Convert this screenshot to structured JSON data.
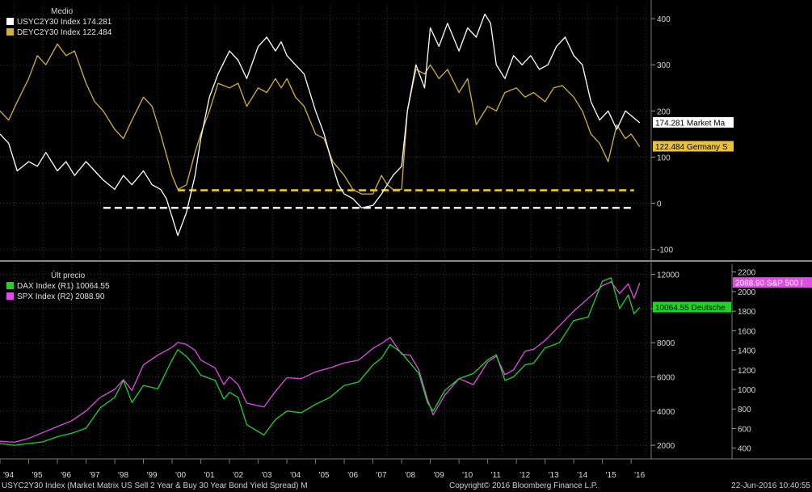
{
  "chart_data": [
    {
      "type": "line",
      "panel": "top",
      "legend_title": "Medio",
      "legend": [
        {
          "text": "USYC2Y30 Index 174.281",
          "color": "#ffffff"
        },
        {
          "text": "DEYC2Y30 Index 122.484",
          "color": "#d4b13a"
        }
      ],
      "ylim": [
        -120,
        430
      ],
      "yticks": [
        -100,
        0,
        100,
        200,
        300,
        400
      ],
      "ytick_labels": [
        "-100",
        "0",
        "100",
        "200",
        "300",
        "400"
      ],
      "xlim": [
        1994.0,
        2016.7
      ],
      "grid": true,
      "hlines": [
        {
          "y": -10,
          "color": "#ffffff",
          "dashed": true,
          "from": 1997.6,
          "to": 2016.1
        },
        {
          "y": 28,
          "color": "#f2d230",
          "dashed": true,
          "from": 2000.2,
          "to": 2016.1
        }
      ],
      "tags": [
        {
          "y": 174.3,
          "text": "174.281 Market Ma",
          "bg": "#ffffff",
          "fg": "#000000"
        },
        {
          "y": 122.5,
          "text": "122.484 Germany S",
          "bg": "#e8c23a",
          "fg": "#000000"
        }
      ],
      "series": [
        {
          "name": "USYC2Y30 Index",
          "color": "#ffffff",
          "x": [
            1994.0,
            1994.3,
            1994.6,
            1995.0,
            1995.3,
            1995.6,
            1996.0,
            1996.3,
            1996.6,
            1997.0,
            1997.3,
            1997.6,
            1998.0,
            1998.3,
            1998.6,
            1999.0,
            1999.3,
            1999.6,
            1999.8,
            2000.0,
            2000.2,
            2000.5,
            2000.8,
            2001.0,
            2001.3,
            2001.6,
            2002.0,
            2002.3,
            2002.6,
            2003.0,
            2003.3,
            2003.6,
            2003.8,
            2004.0,
            2004.3,
            2004.6,
            2005.0,
            2005.3,
            2005.6,
            2005.8,
            2006.0,
            2006.3,
            2006.6,
            2007.0,
            2007.3,
            2007.5,
            2007.7,
            2008.0,
            2008.2,
            2008.5,
            2008.8,
            2009.0,
            2009.3,
            2009.6,
            2010.0,
            2010.3,
            2010.6,
            2010.9,
            2011.1,
            2011.3,
            2011.6,
            2011.9,
            2012.2,
            2012.5,
            2012.8,
            2013.1,
            2013.4,
            2013.7,
            2014.0,
            2014.3,
            2014.6,
            2014.9,
            2015.2,
            2015.5,
            2015.8,
            2016.0,
            2016.3
          ],
          "y": [
            150,
            130,
            70,
            90,
            80,
            110,
            70,
            90,
            60,
            90,
            70,
            50,
            30,
            60,
            40,
            70,
            40,
            30,
            10,
            -30,
            -70,
            -20,
            60,
            140,
            230,
            280,
            330,
            310,
            270,
            340,
            360,
            330,
            350,
            320,
            300,
            280,
            200,
            150,
            80,
            40,
            20,
            10,
            -10,
            -5,
            20,
            40,
            60,
            80,
            200,
            300,
            250,
            380,
            340,
            390,
            330,
            380,
            360,
            410,
            390,
            300,
            270,
            320,
            300,
            320,
            290,
            300,
            340,
            360,
            320,
            300,
            220,
            180,
            200,
            160,
            200,
            190,
            174.3
          ]
        },
        {
          "name": "DEYC2Y30 Index",
          "color": "#d4b13a",
          "x": [
            1994.0,
            1994.3,
            1994.6,
            1995.0,
            1995.3,
            1995.6,
            1996.0,
            1996.3,
            1996.6,
            1997.0,
            1997.3,
            1997.6,
            1998.0,
            1998.3,
            1998.6,
            1999.0,
            1999.3,
            1999.6,
            2000.0,
            2000.2,
            2000.5,
            2000.8,
            2001.0,
            2001.3,
            2001.6,
            2002.0,
            2002.3,
            2002.6,
            2003.0,
            2003.3,
            2003.6,
            2003.8,
            2004.0,
            2004.3,
            2004.6,
            2005.0,
            2005.3,
            2005.6,
            2006.0,
            2006.3,
            2006.6,
            2007.0,
            2007.3,
            2007.5,
            2007.7,
            2008.0,
            2008.2,
            2008.5,
            2008.8,
            2009.0,
            2009.3,
            2009.6,
            2010.0,
            2010.3,
            2010.6,
            2011.0,
            2011.3,
            2011.6,
            2012.0,
            2012.3,
            2012.6,
            2013.0,
            2013.3,
            2013.6,
            2014.0,
            2014.3,
            2014.6,
            2014.9,
            2015.2,
            2015.5,
            2015.8,
            2016.0,
            2016.3
          ],
          "y": [
            200,
            180,
            220,
            270,
            320,
            300,
            345,
            320,
            330,
            260,
            220,
            200,
            160,
            140,
            180,
            230,
            210,
            150,
            60,
            30,
            40,
            110,
            150,
            200,
            260,
            250,
            260,
            210,
            250,
            240,
            270,
            250,
            270,
            230,
            210,
            150,
            140,
            90,
            60,
            30,
            20,
            20,
            60,
            40,
            30,
            30,
            200,
            290,
            280,
            300,
            270,
            290,
            240,
            270,
            170,
            210,
            200,
            240,
            250,
            230,
            240,
            220,
            250,
            255,
            230,
            200,
            150,
            130,
            90,
            170,
            140,
            150,
            122.5
          ]
        }
      ]
    },
    {
      "type": "line",
      "panel": "bottom",
      "legend_title": "Últ precio",
      "legend": [
        {
          "text": "DAX Index  (R1) 10064.55",
          "color": "#22d22a"
        },
        {
          "text": "SPX Index  (R2)  2088.90",
          "color": "#e14ce6"
        }
      ],
      "y1lim": [
        1200,
        12600
      ],
      "y1ticks": [
        2000,
        4000,
        6000,
        8000,
        10000,
        12000
      ],
      "y1tick_labels": [
        "2000",
        "4000",
        "6000",
        "8000",
        "10000",
        "12000"
      ],
      "y2lim": [
        290,
        2280
      ],
      "y2ticks": [
        400,
        600,
        800,
        1000,
        1200,
        1400,
        1600,
        1800,
        2000,
        2200
      ],
      "y2tick_labels": [
        "400",
        "600",
        "800",
        "1000",
        "1200",
        "1400",
        "1600",
        "1800",
        "2000",
        "2200"
      ],
      "xlim": [
        1994.0,
        2016.7
      ],
      "grid": true,
      "tags": [
        {
          "axis": "y2",
          "y": 2088.9,
          "text": "2088.90 S&P 500 I",
          "bg": "#e14ce6",
          "fg": "#ffffff"
        },
        {
          "axis": "y1",
          "y": 10064.55,
          "text": "10064.55 Deutsche",
          "bg": "#22d22a",
          "fg": "#000000"
        }
      ],
      "series": [
        {
          "name": "DAX Index",
          "axis": "y1",
          "color": "#22d22a",
          "x": [
            1994.0,
            1994.5,
            1995.0,
            1995.5,
            1996.0,
            1996.5,
            1997.0,
            1997.5,
            1998.0,
            1998.3,
            1998.6,
            1999.0,
            1999.5,
            2000.0,
            2000.2,
            2000.5,
            2000.8,
            2001.0,
            2001.5,
            2001.8,
            2002.0,
            2002.3,
            2002.6,
            2002.9,
            2003.2,
            2003.6,
            2004.0,
            2004.5,
            2005.0,
            2005.5,
            2006.0,
            2006.5,
            2007.0,
            2007.3,
            2007.6,
            2008.0,
            2008.3,
            2008.6,
            2008.9,
            2009.1,
            2009.5,
            2010.0,
            2010.5,
            2011.0,
            2011.3,
            2011.6,
            2011.9,
            2012.3,
            2012.6,
            2013.0,
            2013.5,
            2014.0,
            2014.5,
            2015.0,
            2015.3,
            2015.6,
            2015.9,
            2016.1,
            2016.3
          ],
          "y": [
            2100,
            2000,
            2100,
            2200,
            2500,
            2700,
            3000,
            4200,
            4800,
            5800,
            4500,
            5500,
            5300,
            7000,
            7600,
            7200,
            6600,
            6100,
            5800,
            4700,
            5100,
            4800,
            3200,
            2900,
            2600,
            3500,
            4000,
            3900,
            4400,
            4800,
            5500,
            5700,
            6700,
            7100,
            7900,
            7400,
            6800,
            6200,
            4500,
            4000,
            5200,
            5900,
            6200,
            7000,
            7300,
            5800,
            6000,
            6700,
            6800,
            7700,
            8000,
            9300,
            9500,
            11600,
            11800,
            10000,
            10800,
            9700,
            10064.55
          ]
        },
        {
          "name": "SPX Index",
          "axis": "y2",
          "color": "#e14ce6",
          "x": [
            1994.0,
            1994.5,
            1995.0,
            1995.5,
            1996.0,
            1996.5,
            1997.0,
            1997.5,
            1998.0,
            1998.3,
            1998.6,
            1999.0,
            1999.5,
            2000.0,
            2000.2,
            2000.5,
            2000.8,
            2001.0,
            2001.5,
            2001.8,
            2002.0,
            2002.3,
            2002.6,
            2002.9,
            2003.2,
            2003.6,
            2004.0,
            2004.5,
            2005.0,
            2005.5,
            2006.0,
            2006.5,
            2007.0,
            2007.3,
            2007.6,
            2008.0,
            2008.3,
            2008.6,
            2008.9,
            2009.1,
            2009.5,
            2010.0,
            2010.5,
            2011.0,
            2011.3,
            2011.6,
            2011.9,
            2012.3,
            2012.6,
            2013.0,
            2013.5,
            2014.0,
            2014.5,
            2015.0,
            2015.3,
            2015.6,
            2015.9,
            2016.1,
            2016.3
          ],
          "y": [
            470,
            460,
            500,
            560,
            620,
            680,
            780,
            920,
            1000,
            1100,
            990,
            1250,
            1350,
            1430,
            1480,
            1460,
            1400,
            1300,
            1220,
            1050,
            1130,
            1050,
            860,
            840,
            820,
            980,
            1120,
            1110,
            1180,
            1220,
            1270,
            1300,
            1420,
            1470,
            1530,
            1360,
            1350,
            1200,
            900,
            740,
            940,
            1110,
            1050,
            1280,
            1340,
            1150,
            1200,
            1390,
            1410,
            1500,
            1650,
            1800,
            1930,
            2060,
            2100,
            1980,
            2080,
            1930,
            2088.9
          ]
        }
      ]
    }
  ],
  "x_tick_labels": [
    "'94",
    "'95",
    "'96",
    "'97",
    "'98",
    "'99",
    "'00",
    "'01",
    "'02",
    "'03",
    "'04",
    "'05",
    "'06",
    "'07",
    "'08",
    "'09",
    "'10",
    "'11",
    "'12",
    "'13",
    "'14",
    "'15",
    "'16"
  ],
  "footer": {
    "left": "USYC2Y30 Index (Market Matrix US Sell 2 Year & Buy 30 Year Bond Yield Spread)  M",
    "center": "Copyright© 2016 Bloomberg Finance L.P.",
    "right": "22-Jun-2016 10:40:55"
  }
}
